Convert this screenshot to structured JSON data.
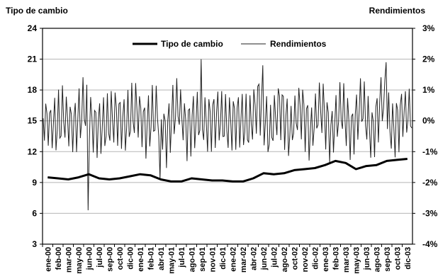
{
  "chart_data": {
    "type": "line",
    "title": "",
    "ylabel_left": "Tipo de cambio",
    "ylabel_right": "Rendimientos",
    "ylim_left": [
      3,
      24
    ],
    "yticks_left": [
      "24",
      "21",
      "18",
      "15",
      "12",
      "9",
      "6",
      "3"
    ],
    "ylim_right": [
      -0.04,
      0.03
    ],
    "yticks_right": [
      "3%",
      "2%",
      "1%",
      "0%",
      "-1%",
      "-2%",
      "-3%",
      "-4%"
    ],
    "grid": "horizontal",
    "legend": {
      "placement": "top-center",
      "entries": [
        "Tipo de cambio",
        "Rendimientos"
      ]
    },
    "categories": [
      "ene-00",
      "feb-00",
      "mar-00",
      "may-00",
      "jun-00",
      "jul-00",
      "sep-00",
      "oct-00",
      "dic-00",
      "ene-01",
      "feb-01",
      "abr-01",
      "may-01",
      "jul-01",
      "ago-01",
      "sep-01",
      "nov-01",
      "dic-01",
      "ene-02",
      "mar-02",
      "abr-02",
      "jun-02",
      "jul-02",
      "ago-02",
      "oct-02",
      "nov-02",
      "dic-02",
      "ene-03",
      "feb-03",
      "mar-03",
      "may-03",
      "jun-03",
      "ago-03",
      "sep-03",
      "oct-03",
      "dic-03"
    ],
    "series": [
      {
        "name": "Tipo de cambio",
        "axis": "left",
        "values": [
          9.5,
          9.4,
          9.3,
          9.5,
          9.8,
          9.4,
          9.3,
          9.4,
          9.6,
          9.8,
          9.7,
          9.3,
          9.1,
          9.1,
          9.4,
          9.3,
          9.2,
          9.2,
          9.1,
          9.1,
          9.4,
          9.9,
          9.8,
          9.9,
          10.2,
          10.3,
          10.4,
          10.7,
          11.1,
          10.9,
          10.3,
          10.6,
          10.7,
          11.1,
          11.2,
          11.3
        ]
      },
      {
        "name": "Rendimientos",
        "axis": "right",
        "values": [
          0.002,
          -0.005,
          0.004,
          -0.006,
          0.012,
          -0.006,
          -0.004,
          0.005,
          -0.003,
          0.011,
          -0.006,
          0.009,
          -0.012,
          0.015,
          -0.007,
          0.003,
          -0.002,
          0.004,
          -0.003,
          0.002,
          -0.004,
          0.017,
          -0.011,
          0.013,
          -0.009,
          0.012,
          -0.01,
          0.014,
          -0.011,
          0.012,
          -0.01,
          0.015,
          -0.012,
          0.018,
          -0.009,
          0.006
        ],
        "extremes": [
          {
            "category": "jun-00",
            "value": -0.029
          },
          {
            "category": "abr-01",
            "value": -0.019
          },
          {
            "category": "sep-01",
            "value": 0.02
          },
          {
            "category": "jun-02",
            "value": 0.018
          },
          {
            "category": "sep-03",
            "value": 0.019
          }
        ]
      }
    ]
  }
}
